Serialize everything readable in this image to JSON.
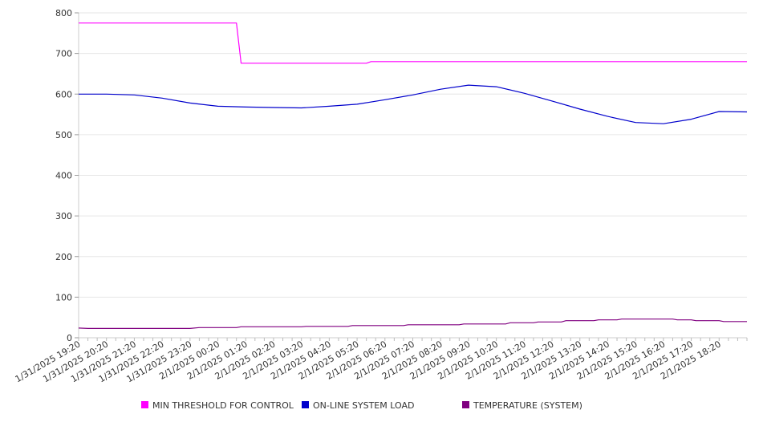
{
  "chart_data": {
    "type": "line",
    "title": "",
    "xlabel": "",
    "ylabel": "",
    "ylim": [
      0,
      800
    ],
    "y_ticks": [
      0,
      100,
      200,
      300,
      400,
      500,
      600,
      700,
      800
    ],
    "x_range": [
      "1/31/2025 19:20",
      "2/1/2025 19:20"
    ],
    "x_tick_labels": [
      "1/31/2025 19:20",
      "1/31/2025 20:20",
      "1/31/2025 21:20",
      "1/31/2025 22:20",
      "1/31/2025 23:20",
      "2/1/2025 00:20",
      "2/1/2025 01:20",
      "2/1/2025 02:20",
      "2/1/2025 03:20",
      "2/1/2025 04:20",
      "2/1/2025 05:20",
      "2/1/2025 06:20",
      "2/1/2025 07:20",
      "2/1/2025 08:20",
      "2/1/2025 09:20",
      "2/1/2025 10:20",
      "2/1/2025 11:20",
      "2/1/2025 12:20",
      "2/1/2025 13:20",
      "2/1/2025 14:20",
      "2/1/2025 15:20",
      "2/1/2025 16:20",
      "2/1/2025 17:20",
      "2/1/2025 18:20"
    ],
    "grid": "horizontal",
    "legend_position": "bottom",
    "series": [
      {
        "name": "MIN THRESHOLD FOR CONTROL",
        "color": "#ff00ff",
        "step": true,
        "points": [
          [
            "1/31/2025 19:20",
            775
          ],
          [
            "2/1/2025 01:00",
            775
          ],
          [
            "2/1/2025 01:10",
            676
          ],
          [
            "2/1/2025 05:40",
            676
          ],
          [
            "2/1/2025 05:50",
            680
          ],
          [
            "2/1/2025 19:20",
            680
          ]
        ]
      },
      {
        "name": "ON-LINE SYSTEM LOAD",
        "color": "#0000cc",
        "step": false,
        "points": [
          [
            "1/31/2025 19:20",
            600
          ],
          [
            "1/31/2025 20:20",
            600
          ],
          [
            "1/31/2025 21:20",
            598
          ],
          [
            "1/31/2025 22:20",
            590
          ],
          [
            "1/31/2025 23:20",
            578
          ],
          [
            "2/1/2025 00:20",
            570
          ],
          [
            "2/1/2025 01:20",
            568
          ],
          [
            "2/1/2025 02:20",
            567
          ],
          [
            "2/1/2025 03:20",
            566
          ],
          [
            "2/1/2025 04:20",
            570
          ],
          [
            "2/1/2025 05:20",
            575
          ],
          [
            "2/1/2025 06:20",
            586
          ],
          [
            "2/1/2025 07:20",
            598
          ],
          [
            "2/1/2025 08:20",
            612
          ],
          [
            "2/1/2025 09:20",
            622
          ],
          [
            "2/1/2025 10:20",
            618
          ],
          [
            "2/1/2025 11:20",
            602
          ],
          [
            "2/1/2025 12:20",
            583
          ],
          [
            "2/1/2025 13:20",
            563
          ],
          [
            "2/1/2025 14:20",
            545
          ],
          [
            "2/1/2025 15:20",
            530
          ],
          [
            "2/1/2025 16:20",
            527
          ],
          [
            "2/1/2025 17:20",
            538
          ],
          [
            "2/1/2025 18:20",
            557
          ],
          [
            "2/1/2025 19:20",
            556
          ]
        ]
      },
      {
        "name": "TEMPERATURE (SYSTEM)",
        "color": "#800080",
        "step": true,
        "points": [
          [
            "1/31/2025 19:20",
            24
          ],
          [
            "1/31/2025 19:40",
            23
          ],
          [
            "1/31/2025 23:20",
            23
          ],
          [
            "1/31/2025 23:40",
            25
          ],
          [
            "2/1/2025 01:00",
            25
          ],
          [
            "2/1/2025 01:10",
            27
          ],
          [
            "2/1/2025 03:20",
            27
          ],
          [
            "2/1/2025 03:30",
            28
          ],
          [
            "2/1/2025 05:00",
            28
          ],
          [
            "2/1/2025 05:10",
            30
          ],
          [
            "2/1/2025 07:00",
            30
          ],
          [
            "2/1/2025 07:10",
            32
          ],
          [
            "2/1/2025 09:00",
            32
          ],
          [
            "2/1/2025 09:10",
            34
          ],
          [
            "2/1/2025 10:40",
            34
          ],
          [
            "2/1/2025 10:50",
            37
          ],
          [
            "2/1/2025 11:40",
            37
          ],
          [
            "2/1/2025 11:50",
            39
          ],
          [
            "2/1/2025 12:40",
            39
          ],
          [
            "2/1/2025 12:50",
            42
          ],
          [
            "2/1/2025 13:50",
            42
          ],
          [
            "2/1/2025 14:00",
            44
          ],
          [
            "2/1/2025 14:40",
            44
          ],
          [
            "2/1/2025 14:50",
            46
          ],
          [
            "2/1/2025 16:40",
            46
          ],
          [
            "2/1/2025 16:50",
            44
          ],
          [
            "2/1/2025 17:20",
            44
          ],
          [
            "2/1/2025 17:30",
            42
          ],
          [
            "2/1/2025 18:20",
            42
          ],
          [
            "2/1/2025 18:30",
            40
          ],
          [
            "2/1/2025 19:20",
            40
          ]
        ]
      }
    ]
  }
}
